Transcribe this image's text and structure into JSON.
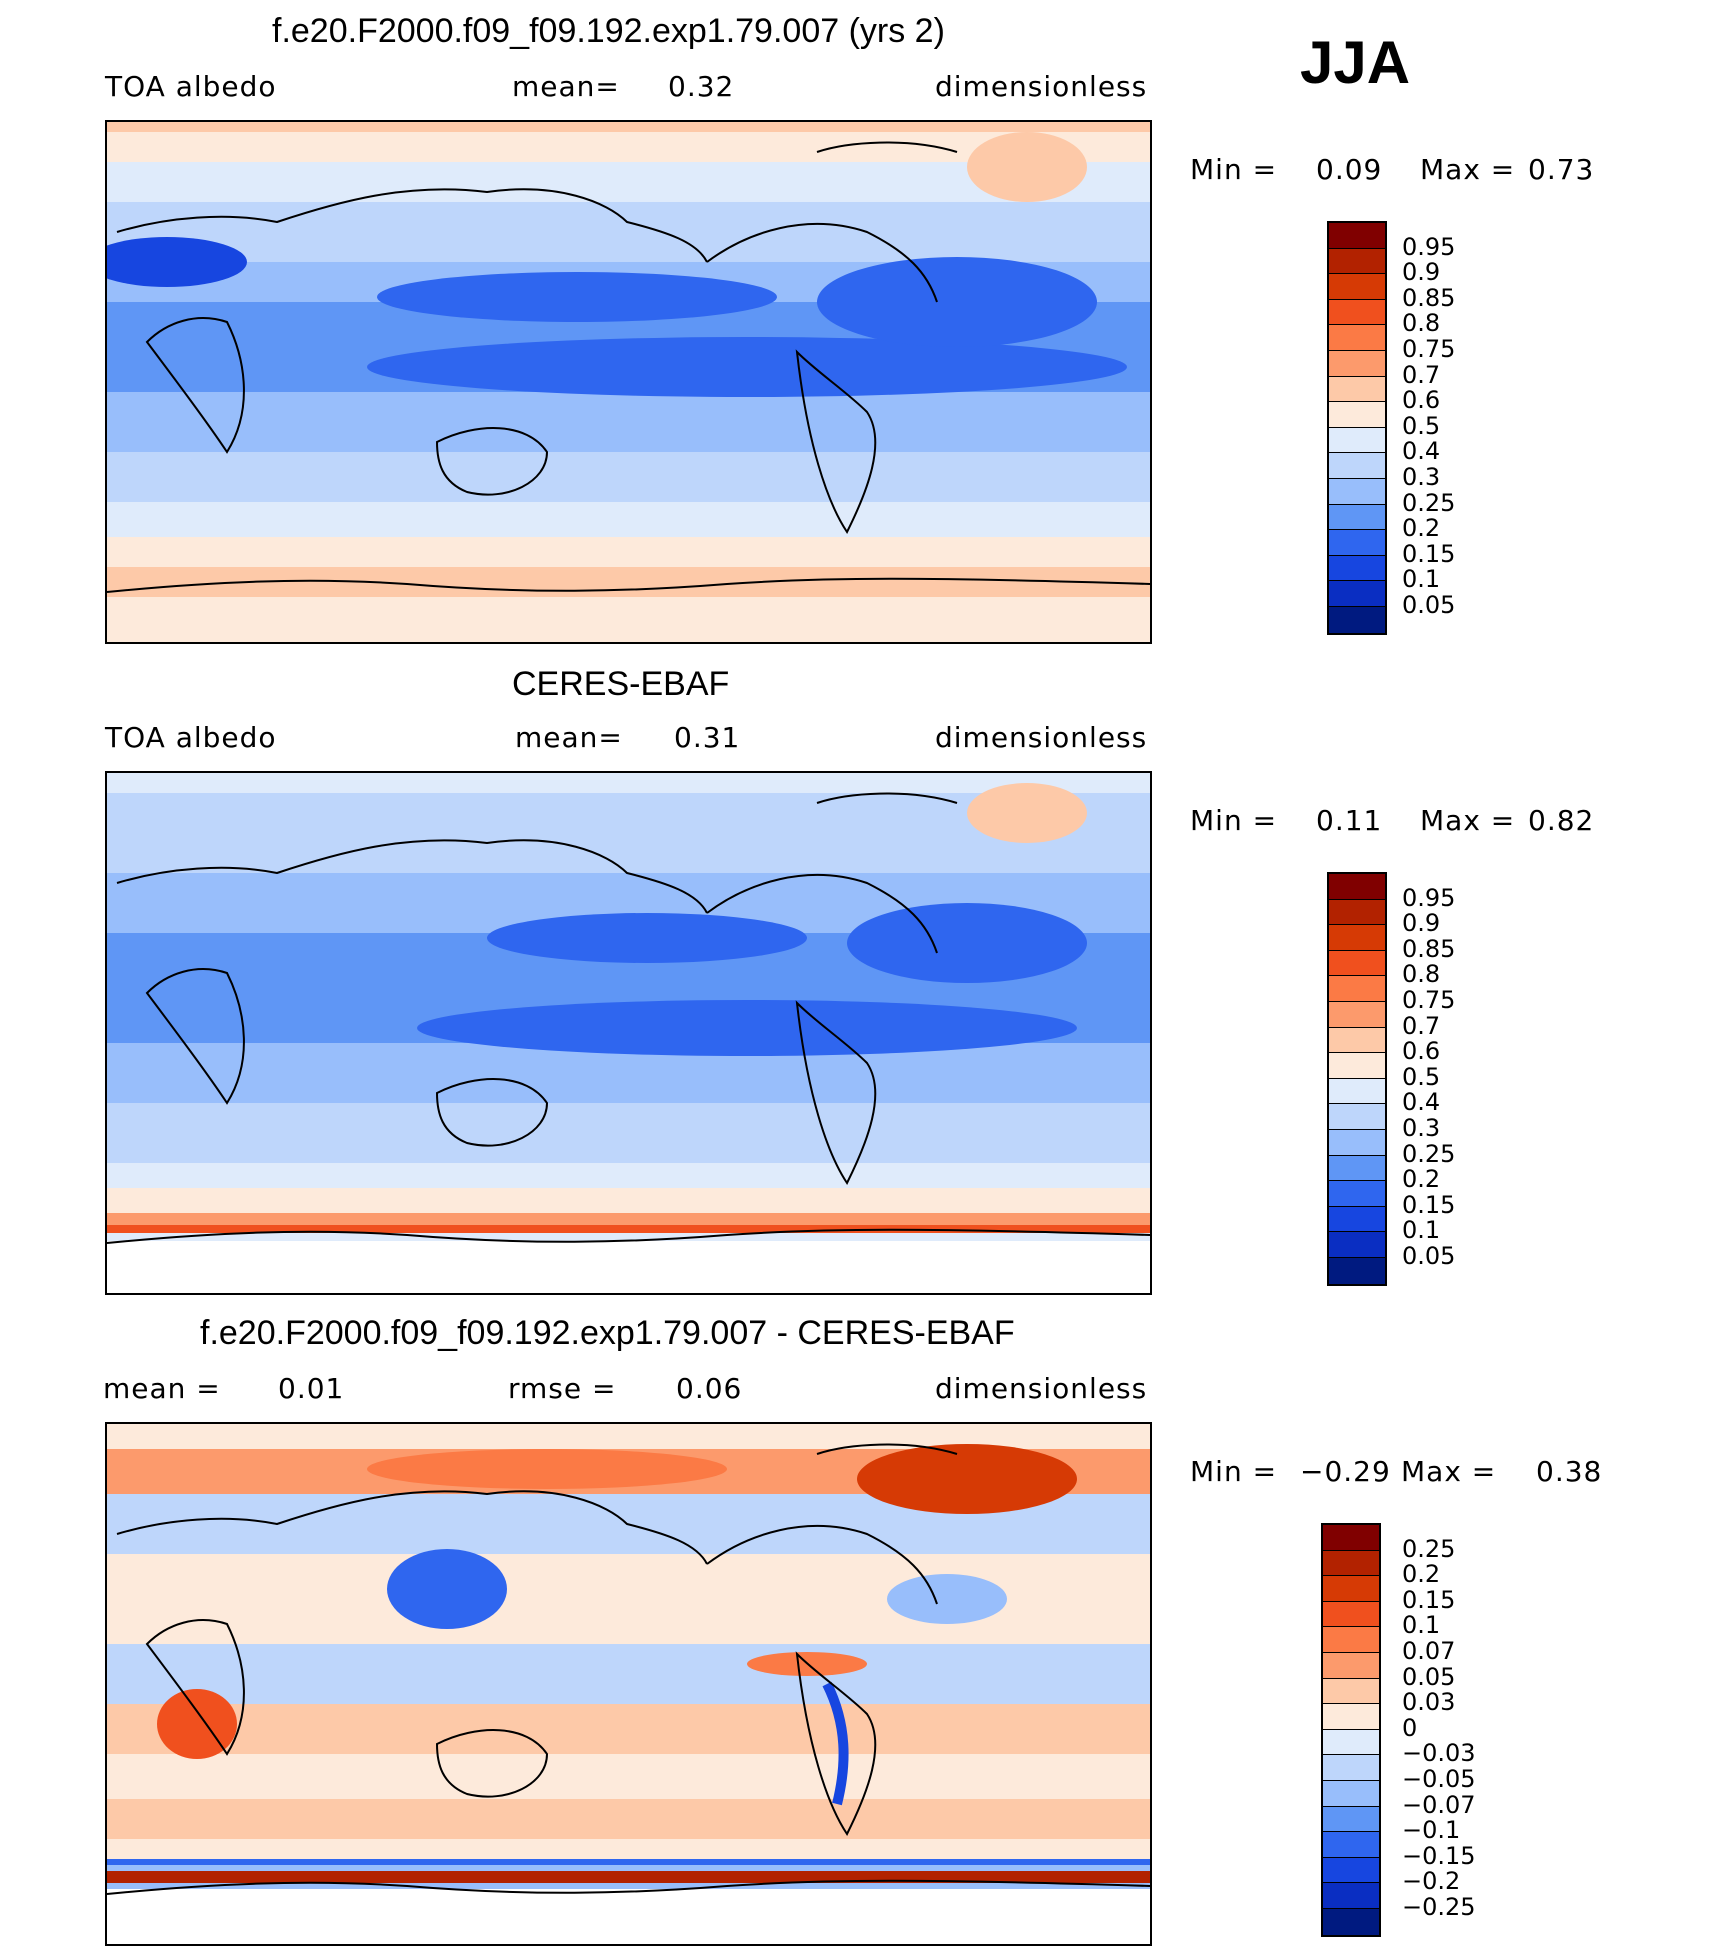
{
  "season": "JJA",
  "panels": [
    {
      "title": "f.e20.F2000.f09_f09.192.exp1.79.007 (yrs 2)",
      "left_label": "TOA albedo",
      "center_label": "mean=",
      "center_value": "0.32",
      "right_label": "dimensionless",
      "min_label": "Min =",
      "min_value": "0.09",
      "max_label": "Max =",
      "max_value": "0.73",
      "colorbar": {
        "levels": [
          "0.95",
          "0.9",
          "0.85",
          "0.8",
          "0.75",
          "0.7",
          "0.6",
          "0.5",
          "0.4",
          "0.3",
          "0.25",
          "0.2",
          "0.15",
          "0.1",
          "0.05"
        ],
        "colors": [
          "#800000",
          "#b22200",
          "#d63a05",
          "#f0501e",
          "#fb7a45",
          "#fc9a6c",
          "#fdc9a8",
          "#fdeadb",
          "#dfebfb",
          "#bed6fb",
          "#98befb",
          "#5f96f5",
          "#2f66ef",
          "#1746e0",
          "#0a2ec2",
          "#001a80"
        ]
      }
    },
    {
      "title": "CERES-EBAF",
      "left_label": "TOA albedo",
      "center_label": "mean=",
      "center_value": "0.31",
      "right_label": "dimensionless",
      "min_label": "Min =",
      "min_value": "0.11",
      "max_label": "Max =",
      "max_value": "0.82",
      "colorbar": {
        "levels": [
          "0.95",
          "0.9",
          "0.85",
          "0.8",
          "0.75",
          "0.7",
          "0.6",
          "0.5",
          "0.4",
          "0.3",
          "0.25",
          "0.2",
          "0.15",
          "0.1",
          "0.05"
        ],
        "colors": [
          "#800000",
          "#b22200",
          "#d63a05",
          "#f0501e",
          "#fb7a45",
          "#fc9a6c",
          "#fdc9a8",
          "#fdeadb",
          "#dfebfb",
          "#bed6fb",
          "#98befb",
          "#5f96f5",
          "#2f66ef",
          "#1746e0",
          "#0a2ec2",
          "#001a80"
        ]
      }
    },
    {
      "title": "f.e20.F2000.f09_f09.192.exp1.79.007 - CERES-EBAF",
      "left_label": "mean =",
      "left_value": "0.01",
      "center_label": "rmse =",
      "center_value": "0.06",
      "right_label": "dimensionless",
      "min_label": "Min =",
      "min_value": "−0.29",
      "max_label": "Max =",
      "max_value": "0.38",
      "colorbar": {
        "levels": [
          "0.25",
          "0.2",
          "0.15",
          "0.1",
          "0.07",
          "0.05",
          "0.03",
          "0",
          "−0.03",
          "−0.05",
          "−0.07",
          "−0.1",
          "−0.15",
          "−0.2",
          "−0.25"
        ],
        "colors": [
          "#800000",
          "#b22200",
          "#d63a05",
          "#f0501e",
          "#fb7a45",
          "#fc9a6c",
          "#fdc9a8",
          "#fdeadb",
          "#dfebfb",
          "#bed6fb",
          "#98befb",
          "#5f96f5",
          "#2f66ef",
          "#1746e0",
          "#0a2ec2",
          "#001a80"
        ]
      }
    }
  ]
}
